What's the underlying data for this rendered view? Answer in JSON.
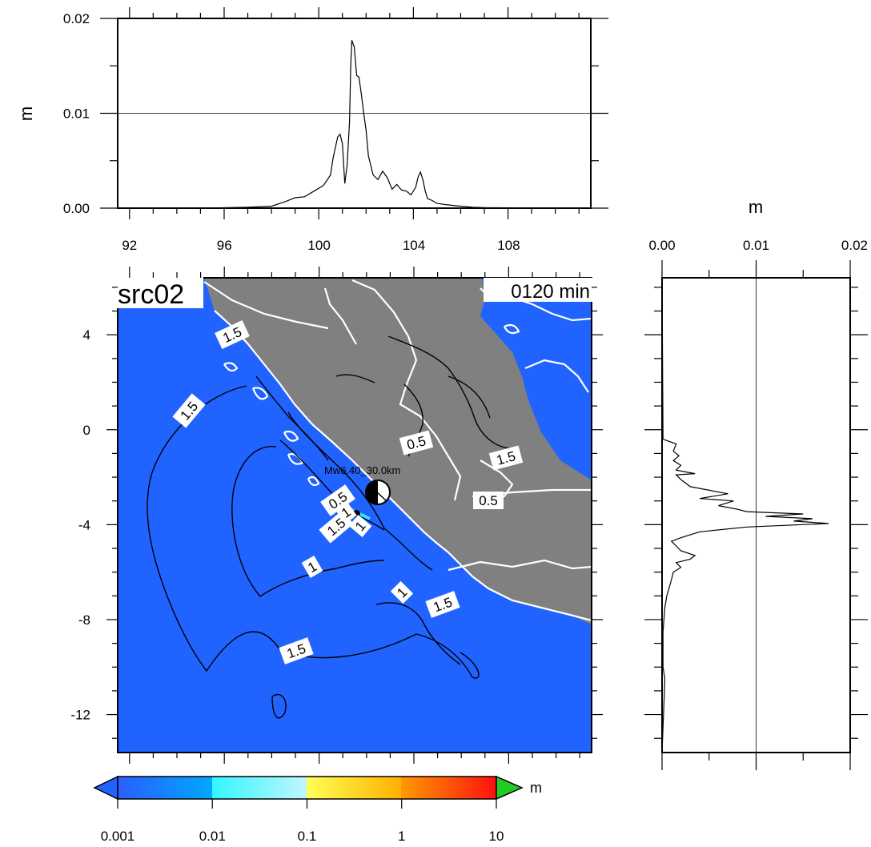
{
  "map": {
    "source_label": "src02",
    "time_label": "0120 min",
    "event_label": "Mw6.40_30.0km",
    "x_ticks": [
      "92",
      "96",
      "100",
      "104",
      "108"
    ],
    "y_ticks": [
      "4",
      "0",
      "-4",
      "-8",
      "-12"
    ],
    "contour_labels": [
      "1.5",
      "1.5",
      "0.5",
      "1.5",
      "0.5",
      "0.5",
      "1.5",
      "1",
      "1",
      "1",
      "1.5",
      "1.5",
      "1"
    ],
    "colors": {
      "sea": "#2163ff",
      "land": "#808080",
      "coast": "#ffffff",
      "contour": "#000000"
    }
  },
  "colorbar": {
    "unit": "m",
    "tick_labels": [
      "0.001",
      "0.01",
      "0.1",
      "1",
      "10"
    ],
    "under_color": "#2163ff",
    "over_color": "#22cc22"
  },
  "chart_data": [
    {
      "type": "line",
      "title": "",
      "xlabel": "",
      "ylabel": "m",
      "xlim": [
        91.5,
        111.5
      ],
      "ylim": [
        0,
        0.02
      ],
      "y_ticks": [
        "0.00",
        "0.01",
        "0.02"
      ],
      "x": [
        91.5,
        95.2,
        97.0,
        98.0,
        98.6,
        99.0,
        99.4,
        99.8,
        100.2,
        100.5,
        100.6,
        100.8,
        100.9,
        101.0,
        101.1,
        101.2,
        101.3,
        101.35,
        101.4,
        101.5,
        101.6,
        101.7,
        101.8,
        101.9,
        102.0,
        102.1,
        102.3,
        102.5,
        102.7,
        102.9,
        103.1,
        103.3,
        103.5,
        103.7,
        103.9,
        104.1,
        104.2,
        104.3,
        104.4,
        104.5,
        104.6,
        104.8,
        105.0,
        105.3,
        105.6,
        106.0,
        106.5,
        107.0,
        108.0,
        109.0,
        110.0,
        111.5
      ],
      "values": [
        0,
        0,
        0.0001,
        0.0002,
        0.0007,
        0.0011,
        0.0012,
        0.0018,
        0.0024,
        0.0035,
        0.0052,
        0.0075,
        0.0078,
        0.0068,
        0.0026,
        0.0045,
        0.0091,
        0.015,
        0.0177,
        0.017,
        0.014,
        0.0138,
        0.012,
        0.01,
        0.0082,
        0.0055,
        0.0035,
        0.003,
        0.0039,
        0.0032,
        0.002,
        0.0025,
        0.0019,
        0.0018,
        0.0014,
        0.0022,
        0.0033,
        0.0038,
        0.003,
        0.0018,
        0.001,
        0.0008,
        0.0005,
        0.0004,
        0.0003,
        0.0002,
        0.0001,
        5e-05,
        3e-05,
        2e-05,
        1e-05,
        0
      ]
    },
    {
      "type": "line",
      "title": "",
      "xlabel": "m",
      "ylabel": "",
      "xlim": [
        0,
        0.02
      ],
      "ylim": [
        -13.6,
        6.4
      ],
      "x_ticks": [
        "0.00",
        "0.01",
        "0.02"
      ],
      "y": [
        6.4,
        -0.4,
        -0.6,
        -0.9,
        -1.1,
        -1.3,
        -1.5,
        -1.7,
        -1.85,
        -1.9,
        -2.1,
        -2.4,
        -2.7,
        -2.9,
        -3.0,
        -3.2,
        -3.35,
        -3.45,
        -3.55,
        -3.65,
        -3.75,
        -3.85,
        -3.95,
        -4.1,
        -4.3,
        -4.55,
        -4.7,
        -4.9,
        -5.1,
        -5.3,
        -5.45,
        -5.6,
        -5.8,
        -6.0,
        -6.3,
        -6.6,
        -7.0,
        -7.5,
        -8.5,
        -10.0,
        -10.5,
        -13.6
      ],
      "values": [
        0,
        0.0001,
        0.0015,
        0.0012,
        0.0018,
        0.0012,
        0.002,
        0.0015,
        0.0035,
        0.0015,
        0.002,
        0.003,
        0.007,
        0.004,
        0.0076,
        0.006,
        0.008,
        0.009,
        0.015,
        0.011,
        0.016,
        0.014,
        0.0177,
        0.009,
        0.004,
        0.002,
        0.001,
        0.0015,
        0.002,
        0.0035,
        0.003,
        0.0015,
        0.002,
        0.0012,
        0.001,
        0.0008,
        0.0005,
        0.0003,
        0.0001,
        0.0001,
        0.0003,
        0
      ]
    }
  ]
}
